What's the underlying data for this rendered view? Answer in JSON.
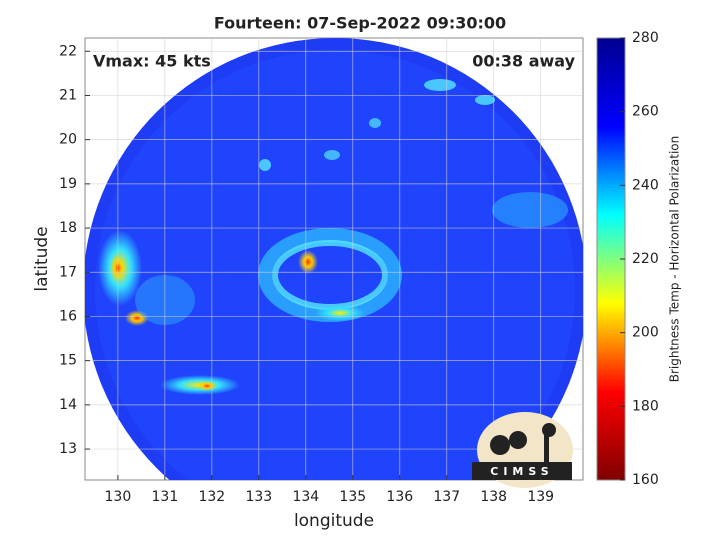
{
  "chart_data": {
    "type": "image",
    "title": "Fourteen: 07-Sep-2022 09:30:00",
    "annotations": [
      "Vmax: 45 kts",
      "00:38 away"
    ],
    "x_label": "longitude",
    "y_label": "latitude",
    "xlim": [
      129.3,
      139.9
    ],
    "xticks": [
      130,
      131,
      132,
      133,
      134,
      135,
      136,
      137,
      138,
      139
    ],
    "ylim": [
      12.3,
      22.3
    ],
    "yticks": [
      13,
      14,
      15,
      16,
      17,
      18,
      19,
      20,
      21,
      22
    ],
    "grid": true,
    "colorbar": {
      "label": "Brightness Temp - Horizontal Polarization",
      "clim": [
        160,
        280
      ],
      "ticks": [
        160,
        180,
        200,
        220,
        240,
        260,
        280
      ],
      "colormap": [
        "#800000",
        "#ff0000",
        "#ffff00",
        "#00ffff",
        "#0000ff",
        "#000090"
      ]
    },
    "logo": "CIMSS"
  }
}
